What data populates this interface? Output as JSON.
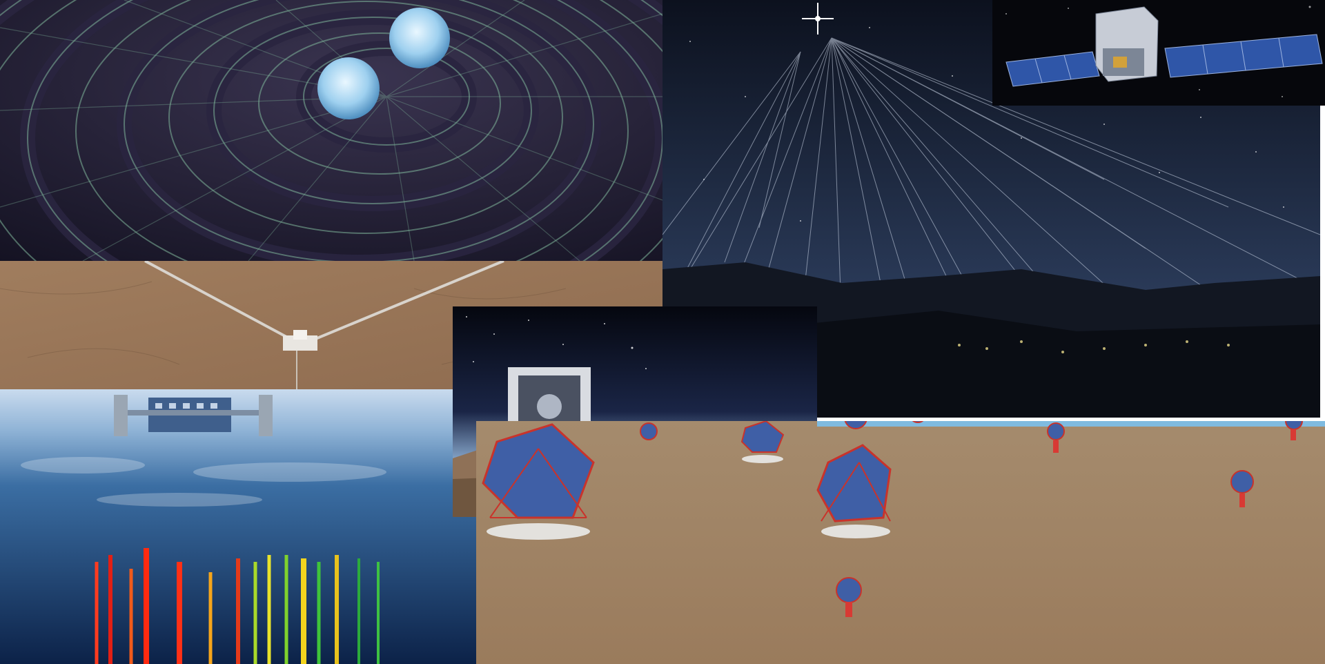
{
  "collage": {
    "panels": [
      {
        "id": "gravitational-waves",
        "subject": "binary-star-spacetime-ripples"
      },
      {
        "id": "cosmic-ray-shower",
        "subject": "air-shower-over-night-landscape"
      },
      {
        "id": "gamma-ray-satellite",
        "subject": "space-telescope-with-solar-panels"
      },
      {
        "id": "ligo-observatory",
        "subject": "l-shaped-interferometer-aerial"
      },
      {
        "id": "neutrino-observatory",
        "subject": "ice-lab-with-sensor-strings"
      },
      {
        "id": "giant-optical-telescope",
        "subject": "telescope-enclosure-on-mountain"
      },
      {
        "id": "cherenkov-array",
        "subject": "telescope-array-on-plain"
      }
    ],
    "colors": {
      "space_dark": "#0d1220",
      "grid_line": "#7fb59a",
      "star_glow": "#a9d7f2",
      "desert": "#a58462",
      "ice_blue": "#2c5f95",
      "truss_red": "#c9332b",
      "mirror_blue": "#3f5fa6",
      "solar_panel": "#2f56a8"
    }
  }
}
